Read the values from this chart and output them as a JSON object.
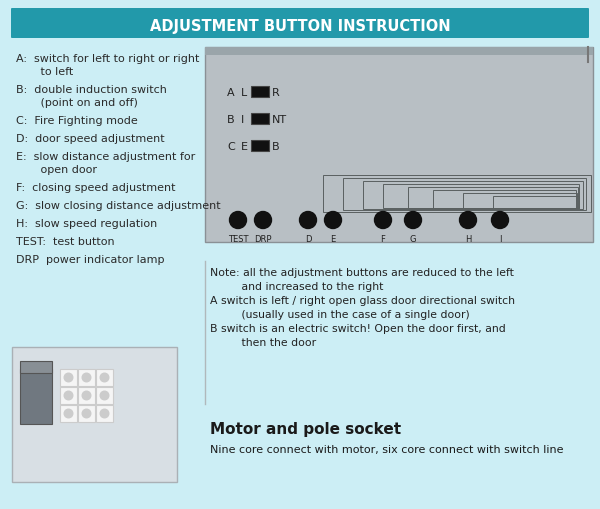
{
  "bg_color": "#cceef5",
  "title": "ADJUSTMENT BUTTON INSTRUCTION",
  "title_bg": "#2299aa",
  "title_color": "#ffffff",
  "left_labels": [
    [
      "A:  switch for left to right or right",
      "       to left"
    ],
    [
      "B:  double induction switch",
      "       (point on and off)"
    ],
    [
      "C:  Fire Fighting mode"
    ],
    [
      "D:  door speed adjustment"
    ],
    [
      "E:  slow distance adjustment for",
      "       open door"
    ],
    [
      "F:  closing speed adjustment"
    ],
    [
      "G:  slow closing distance adjustment"
    ],
    [
      "H:  slow speed regulation"
    ],
    [
      "TEST:  test button"
    ],
    [
      "DRP  power indicator lamp"
    ]
  ],
  "note_text_lines": [
    "Note: all the adjustment buttons are reduced to the left",
    "         and increased to the right",
    "A switch is left / right open glass door directional switch",
    "         (usually used in the case of a single door)",
    "B switch is an electric switch! Open the door first, and",
    "         then the door"
  ],
  "motor_title": "Motor and pole socket",
  "motor_desc": "Nine core connect with motor, six core connect with switch line",
  "panel_bg": "#b8bfc4",
  "button_labels": [
    "TEST",
    "DRP",
    "D",
    "E",
    "F",
    "G",
    "H",
    "I"
  ]
}
